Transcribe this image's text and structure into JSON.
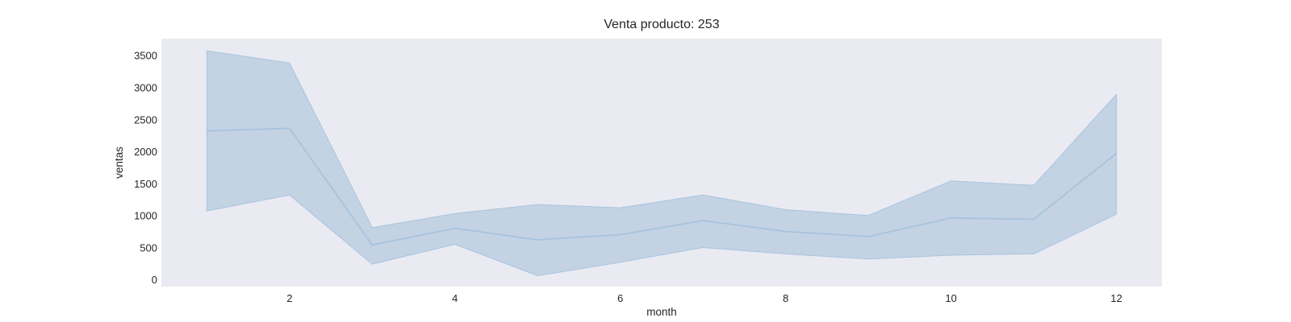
{
  "chart_data": {
    "type": "line",
    "title": "Venta producto: 253",
    "xlabel": "month",
    "ylabel": "ventas",
    "xlim": [
      0.45,
      12.55
    ],
    "ylim": [
      -110,
      3760
    ],
    "x_ticks": [
      2,
      4,
      6,
      8,
      10,
      12
    ],
    "y_ticks": [
      0,
      500,
      1000,
      1500,
      2000,
      2500,
      3000,
      3500
    ],
    "grid": false,
    "series": [
      {
        "x": [
          1,
          2,
          3,
          4,
          5,
          6,
          7,
          8,
          9,
          10,
          11,
          12
        ],
        "mean": [
          2320,
          2360,
          540,
          800,
          620,
          700,
          920,
          750,
          670,
          960,
          940,
          1970
        ],
        "upper": [
          3570,
          3380,
          810,
          1030,
          1170,
          1120,
          1320,
          1090,
          1000,
          1540,
          1470,
          2890
        ],
        "lower": [
          1070,
          1320,
          240,
          550,
          60,
          270,
          500,
          400,
          320,
          380,
          400,
          1020
        ]
      }
    ],
    "colors": {
      "plot_bg": "#eaeaf2",
      "line": "#a7c3dd",
      "band_fill": "#c3d3e4",
      "band_edge": "#a8c4de"
    }
  }
}
